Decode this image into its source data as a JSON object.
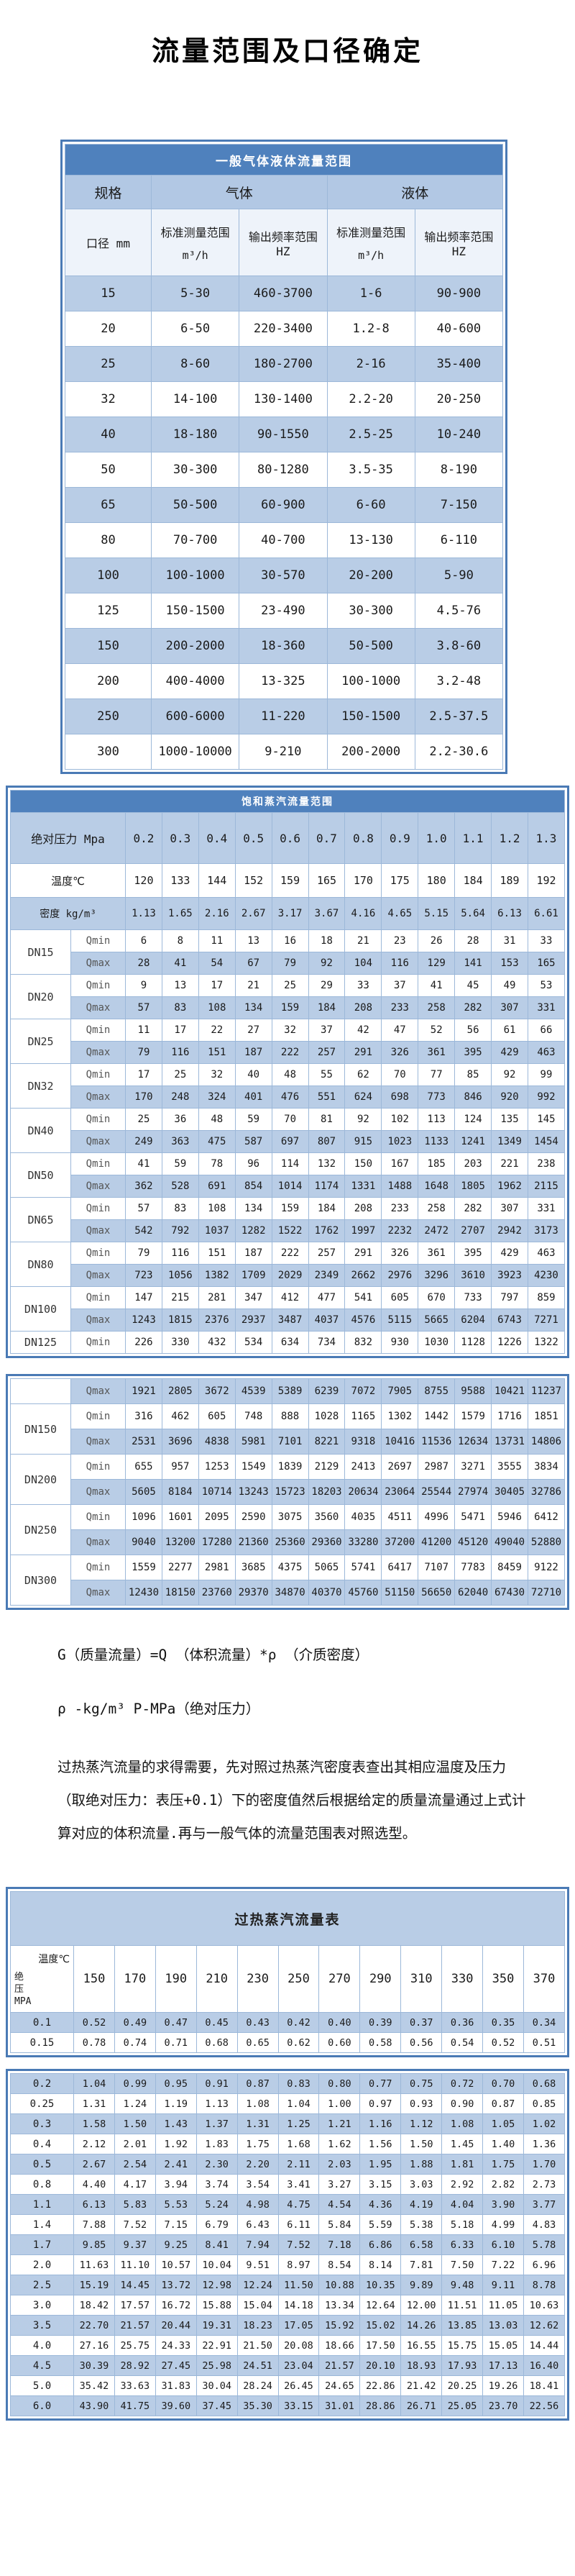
{
  "page_title": "流量范围及口径确定",
  "table1": {
    "title": "一般气体液体流量范围",
    "headers": {
      "spec": "规格",
      "gas": "气体",
      "liquid": "液体",
      "diameter": "口径 mm",
      "range": "标准测量范围",
      "range_unit": "m³/h",
      "freq": "输出频率范围 HZ"
    },
    "rows": [
      [
        "15",
        "5-30",
        "460-3700",
        "1-6",
        "90-900"
      ],
      [
        "20",
        "6-50",
        "220-3400",
        "1.2-8",
        "40-600"
      ],
      [
        "25",
        "8-60",
        "180-2700",
        "2-16",
        "35-400"
      ],
      [
        "32",
        "14-100",
        "130-1400",
        "2.2-20",
        "20-250"
      ],
      [
        "40",
        "18-180",
        "90-1550",
        "2.5-25",
        "10-240"
      ],
      [
        "50",
        "30-300",
        "80-1280",
        "3.5-35",
        "8-190"
      ],
      [
        "65",
        "50-500",
        "60-900",
        "6-60",
        "7-150"
      ],
      [
        "80",
        "70-700",
        "40-700",
        "13-130",
        "6-110"
      ],
      [
        "100",
        "100-1000",
        "30-570",
        "20-200",
        "5-90"
      ],
      [
        "125",
        "150-1500",
        "23-490",
        "30-300",
        "4.5-76"
      ],
      [
        "150",
        "200-2000",
        "18-360",
        "50-500",
        "3.8-60"
      ],
      [
        "200",
        "400-4000",
        "13-325",
        "100-1000",
        "3.2-48"
      ],
      [
        "250",
        "600-6000",
        "11-220",
        "150-1500",
        "2.5-37.5"
      ],
      [
        "300",
        "1000-10000",
        "9-210",
        "200-2000",
        "2.2-30.6"
      ]
    ]
  },
  "table2": {
    "title": "饱和蒸汽流量范围",
    "row_headers": {
      "pressure": "绝对压力 Mpa",
      "temperature": "温度℃",
      "density": "密度 kg/m³"
    },
    "qmin_label": "Qmin",
    "qmax_label": "Qmax",
    "pressures": [
      "0.2",
      "0.3",
      "0.4",
      "0.5",
      "0.6",
      "0.7",
      "0.8",
      "0.9",
      "1.0",
      "1.1",
      "1.2",
      "1.3"
    ],
    "temperatures": [
      "120",
      "133",
      "144",
      "152",
      "159",
      "165",
      "170",
      "175",
      "180",
      "184",
      "189",
      "192"
    ],
    "densities": [
      "1.13",
      "1.65",
      "2.16",
      "2.67",
      "3.17",
      "3.67",
      "4.16",
      "4.65",
      "5.15",
      "5.64",
      "6.13",
      "6.61"
    ],
    "block1": [
      {
        "dn": "DN15",
        "qmin": [
          "6",
          "8",
          "11",
          "13",
          "16",
          "18",
          "21",
          "23",
          "26",
          "28",
          "31",
          "33"
        ],
        "qmax": [
          "28",
          "41",
          "54",
          "67",
          "79",
          "92",
          "104",
          "116",
          "129",
          "141",
          "153",
          "165"
        ]
      },
      {
        "dn": "DN20",
        "qmin": [
          "9",
          "13",
          "17",
          "21",
          "25",
          "29",
          "33",
          "37",
          "41",
          "45",
          "49",
          "53"
        ],
        "qmax": [
          "57",
          "83",
          "108",
          "134",
          "159",
          "184",
          "208",
          "233",
          "258",
          "282",
          "307",
          "331"
        ]
      },
      {
        "dn": "DN25",
        "qmin": [
          "11",
          "17",
          "22",
          "27",
          "32",
          "37",
          "42",
          "47",
          "52",
          "56",
          "61",
          "66"
        ],
        "qmax": [
          "79",
          "116",
          "151",
          "187",
          "222",
          "257",
          "291",
          "326",
          "361",
          "395",
          "429",
          "463"
        ]
      },
      {
        "dn": "DN32",
        "qmin": [
          "17",
          "25",
          "32",
          "40",
          "48",
          "55",
          "62",
          "70",
          "77",
          "85",
          "92",
          "99"
        ],
        "qmax": [
          "170",
          "248",
          "324",
          "401",
          "476",
          "551",
          "624",
          "698",
          "773",
          "846",
          "920",
          "992"
        ]
      },
      {
        "dn": "DN40",
        "qmin": [
          "25",
          "36",
          "48",
          "59",
          "70",
          "81",
          "92",
          "102",
          "113",
          "124",
          "135",
          "145"
        ],
        "qmax": [
          "249",
          "363",
          "475",
          "587",
          "697",
          "807",
          "915",
          "1023",
          "1133",
          "1241",
          "1349",
          "1454"
        ]
      },
      {
        "dn": "DN50",
        "qmin": [
          "41",
          "59",
          "78",
          "96",
          "114",
          "132",
          "150",
          "167",
          "185",
          "203",
          "221",
          "238"
        ],
        "qmax": [
          "362",
          "528",
          "691",
          "854",
          "1014",
          "1174",
          "1331",
          "1488",
          "1648",
          "1805",
          "1962",
          "2115"
        ]
      },
      {
        "dn": "DN65",
        "qmin": [
          "57",
          "83",
          "108",
          "134",
          "159",
          "184",
          "208",
          "233",
          "258",
          "282",
          "307",
          "331"
        ],
        "qmax": [
          "542",
          "792",
          "1037",
          "1282",
          "1522",
          "1762",
          "1997",
          "2232",
          "2472",
          "2707",
          "2942",
          "3173"
        ]
      },
      {
        "dn": "DN80",
        "qmin": [
          "79",
          "116",
          "151",
          "187",
          "222",
          "257",
          "291",
          "326",
          "361",
          "395",
          "429",
          "463"
        ],
        "qmax": [
          "723",
          "1056",
          "1382",
          "1709",
          "2029",
          "2349",
          "2662",
          "2976",
          "3296",
          "3610",
          "3923",
          "4230"
        ]
      },
      {
        "dn": "DN100",
        "qmin": [
          "147",
          "215",
          "281",
          "347",
          "412",
          "477",
          "541",
          "605",
          "670",
          "733",
          "797",
          "859"
        ],
        "qmax": [
          "1243",
          "1815",
          "2376",
          "2937",
          "3487",
          "4037",
          "4576",
          "5115",
          "5665",
          "6204",
          "6743",
          "7271"
        ]
      },
      {
        "dn": "DN125",
        "qmin": [
          "226",
          "330",
          "432",
          "534",
          "634",
          "734",
          "832",
          "930",
          "1030",
          "1128",
          "1226",
          "1322"
        ]
      }
    ],
    "block2": [
      {
        "dn": "",
        "qmax": [
          "1921",
          "2805",
          "3672",
          "4539",
          "5389",
          "6239",
          "7072",
          "7905",
          "8755",
          "9588",
          "10421",
          "11237"
        ]
      },
      {
        "dn": "DN150",
        "qmin": [
          "316",
          "462",
          "605",
          "748",
          "888",
          "1028",
          "1165",
          "1302",
          "1442",
          "1579",
          "1716",
          "1851"
        ],
        "qmax": [
          "2531",
          "3696",
          "4838",
          "5981",
          "7101",
          "8221",
          "9318",
          "10416",
          "11536",
          "12634",
          "13731",
          "14806"
        ]
      },
      {
        "dn": "DN200",
        "qmin": [
          "655",
          "957",
          "1253",
          "1549",
          "1839",
          "2129",
          "2413",
          "2697",
          "2987",
          "3271",
          "3555",
          "3834"
        ],
        "qmax": [
          "5605",
          "8184",
          "10714",
          "13243",
          "15723",
          "18203",
          "20634",
          "23064",
          "25544",
          "27974",
          "30405",
          "32786"
        ]
      },
      {
        "dn": "DN250",
        "qmin": [
          "1096",
          "1601",
          "2095",
          "2590",
          "3075",
          "3560",
          "4035",
          "4511",
          "4996",
          "5471",
          "5946",
          "6412"
        ],
        "qmax": [
          "9040",
          "13200",
          "17280",
          "21360",
          "25360",
          "29360",
          "33280",
          "37200",
          "41200",
          "45120",
          "49040",
          "52880"
        ]
      },
      {
        "dn": "DN300",
        "qmin": [
          "1559",
          "2277",
          "2981",
          "3685",
          "4375",
          "5065",
          "5741",
          "6417",
          "7107",
          "7783",
          "8459",
          "9122"
        ],
        "qmax": [
          "12430",
          "18150",
          "23760",
          "29370",
          "34870",
          "40370",
          "45760",
          "51150",
          "56650",
          "62040",
          "67430",
          "72710"
        ]
      }
    ]
  },
  "notes": {
    "formula": "G（质量流量）=Q （体积流量）*ρ （介质密度）",
    "units": "ρ -kg/m³ P-MPa（绝对压力）",
    "paragraph": "过热蒸汽流量的求得需要，先对照过热蒸汽密度表查出其相应温度及压力（取绝对压力：表压+0.1）下的密度值然后根据给定的质量流量通过上式计算对应的体积流量.再与一般气体的流量范围表对照选型。"
  },
  "table3": {
    "title": "过热蒸汽流量表",
    "corner_top": "温度℃",
    "corner_bottom": "绝\n压\nMPA",
    "temps": [
      "150",
      "170",
      "190",
      "210",
      "230",
      "250",
      "270",
      "290",
      "310",
      "330",
      "350",
      "370"
    ],
    "block1_rows": [
      {
        "p": "0.1",
        "values": [
          "0.52",
          "0.49",
          "0.47",
          "0.45",
          "0.43",
          "0.42",
          "0.40",
          "0.39",
          "0.37",
          "0.36",
          "0.35",
          "0.34"
        ]
      },
      {
        "p": "0.15",
        "values": [
          "0.78",
          "0.74",
          "0.71",
          "0.68",
          "0.65",
          "0.62",
          "0.60",
          "0.58",
          "0.56",
          "0.54",
          "0.52",
          "0.51"
        ]
      }
    ],
    "block2_rows": [
      {
        "p": "0.2",
        "values": [
          "1.04",
          "0.99",
          "0.95",
          "0.91",
          "0.87",
          "0.83",
          "0.80",
          "0.77",
          "0.75",
          "0.72",
          "0.70",
          "0.68"
        ]
      },
      {
        "p": "0.25",
        "values": [
          "1.31",
          "1.24",
          "1.19",
          "1.13",
          "1.08",
          "1.04",
          "1.00",
          "0.97",
          "0.93",
          "0.90",
          "0.87",
          "0.85"
        ]
      },
      {
        "p": "0.3",
        "values": [
          "1.58",
          "1.50",
          "1.43",
          "1.37",
          "1.31",
          "1.25",
          "1.21",
          "1.16",
          "1.12",
          "1.08",
          "1.05",
          "1.02"
        ]
      },
      {
        "p": "0.4",
        "values": [
          "2.12",
          "2.01",
          "1.92",
          "1.83",
          "1.75",
          "1.68",
          "1.62",
          "1.56",
          "1.50",
          "1.45",
          "1.40",
          "1.36"
        ]
      },
      {
        "p": "0.5",
        "values": [
          "2.67",
          "2.54",
          "2.41",
          "2.30",
          "2.20",
          "2.11",
          "2.03",
          "1.95",
          "1.88",
          "1.81",
          "1.75",
          "1.70"
        ]
      },
      {
        "p": "0.8",
        "values": [
          "4.40",
          "4.17",
          "3.94",
          "3.74",
          "3.54",
          "3.41",
          "3.27",
          "3.15",
          "3.03",
          "2.92",
          "2.82",
          "2.73"
        ]
      },
      {
        "p": "1.1",
        "values": [
          "6.13",
          "5.83",
          "5.53",
          "5.24",
          "4.98",
          "4.75",
          "4.54",
          "4.36",
          "4.19",
          "4.04",
          "3.90",
          "3.77"
        ]
      },
      {
        "p": "1.4",
        "values": [
          "7.88",
          "7.52",
          "7.15",
          "6.79",
          "6.43",
          "6.11",
          "5.84",
          "5.59",
          "5.38",
          "5.18",
          "4.99",
          "4.83"
        ]
      },
      {
        "p": "1.7",
        "values": [
          "9.85",
          "9.37",
          "9.25",
          "8.41",
          "7.94",
          "7.52",
          "7.18",
          "6.86",
          "6.58",
          "6.33",
          "6.10",
          "5.78"
        ]
      },
      {
        "p": "2.0",
        "values": [
          "11.63",
          "11.10",
          "10.57",
          "10.04",
          "9.51",
          "8.97",
          "8.54",
          "8.14",
          "7.81",
          "7.50",
          "7.22",
          "6.96"
        ]
      },
      {
        "p": "2.5",
        "values": [
          "15.19",
          "14.45",
          "13.72",
          "12.98",
          "12.24",
          "11.50",
          "10.88",
          "10.35",
          "9.89",
          "9.48",
          "9.11",
          "8.78"
        ]
      },
      {
        "p": "3.0",
        "values": [
          "18.42",
          "17.57",
          "16.72",
          "15.88",
          "15.04",
          "14.18",
          "13.34",
          "12.64",
          "12.00",
          "11.51",
          "11.05",
          "10.63"
        ]
      },
      {
        "p": "3.5",
        "values": [
          "22.70",
          "21.57",
          "20.44",
          "19.31",
          "18.23",
          "17.05",
          "15.92",
          "15.02",
          "14.26",
          "13.85",
          "13.03",
          "12.62"
        ]
      },
      {
        "p": "4.0",
        "values": [
          "27.16",
          "25.75",
          "24.33",
          "22.91",
          "21.50",
          "20.08",
          "18.66",
          "17.50",
          "16.55",
          "15.75",
          "15.05",
          "14.44"
        ]
      },
      {
        "p": "4.5",
        "values": [
          "30.39",
          "28.92",
          "27.45",
          "25.98",
          "24.51",
          "23.04",
          "21.57",
          "20.10",
          "18.93",
          "17.93",
          "17.13",
          "16.40"
        ]
      },
      {
        "p": "5.0",
        "values": [
          "35.42",
          "33.63",
          "31.83",
          "30.04",
          "28.24",
          "26.45",
          "24.65",
          "22.86",
          "21.42",
          "20.25",
          "19.26",
          "18.41"
        ]
      },
      {
        "p": "6.0",
        "values": [
          "43.90",
          "41.75",
          "39.60",
          "37.45",
          "35.30",
          "33.15",
          "31.01",
          "28.86",
          "26.71",
          "25.05",
          "23.70",
          "22.56"
        ]
      }
    ]
  }
}
